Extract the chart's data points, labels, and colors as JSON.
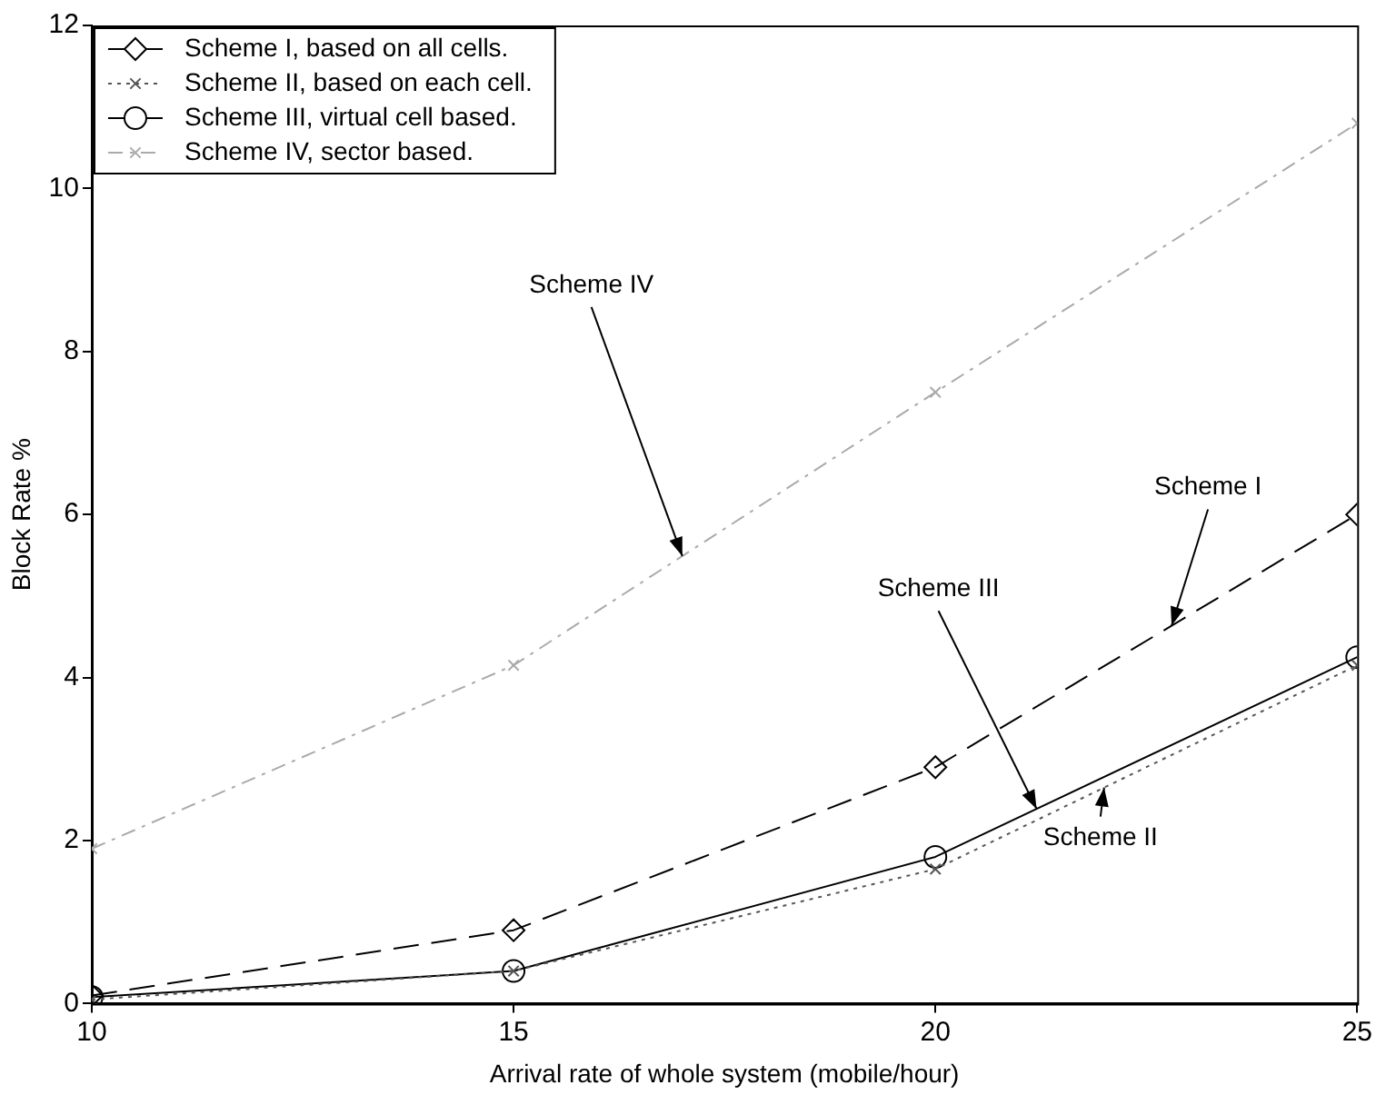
{
  "chart_data": {
    "type": "line",
    "xlabel": "Arrival rate of whole system (mobile/hour)",
    "ylabel": "Block Rate %",
    "x": [
      10,
      15,
      20,
      25
    ],
    "series": [
      {
        "name": "Scheme I, based on all cells.",
        "color": "#000000",
        "values": [
          0.1,
          0.9,
          2.9,
          6.0
        ],
        "marker": "diamond",
        "line_style": "dashed"
      },
      {
        "name": "Scheme II, based on each cell.",
        "color": "#555555",
        "values": [
          0.05,
          0.4,
          1.65,
          4.15
        ],
        "marker": "cross",
        "line_style": "dotted"
      },
      {
        "name": "Scheme III, virtual cell based.",
        "color": "#000000",
        "values": [
          0.08,
          0.4,
          1.8,
          4.25
        ],
        "marker": "circle",
        "line_style": "solid"
      },
      {
        "name": "Scheme IV, sector based.",
        "color": "#aaaaaa",
        "values": [
          1.9,
          4.15,
          7.5,
          10.8
        ],
        "marker": "cross",
        "line_style": "dashdot"
      }
    ],
    "xlim": [
      10,
      25
    ],
    "xticks": [
      10,
      15,
      20,
      25
    ],
    "ylim": [
      0,
      12
    ],
    "yticks": [
      0,
      2,
      4,
      6,
      8,
      10,
      12
    ],
    "grid": false,
    "legend": "top left",
    "annotations": [
      {
        "text": "Scheme IV",
        "x": 17,
        "y": 5.49
      },
      {
        "text": "Scheme I",
        "x": 22.8,
        "y": 4.636
      },
      {
        "text": "Scheme III",
        "x": 21.2,
        "y": 2.388
      },
      {
        "text": "Scheme II",
        "x": 22,
        "y": 2.65
      }
    ]
  }
}
